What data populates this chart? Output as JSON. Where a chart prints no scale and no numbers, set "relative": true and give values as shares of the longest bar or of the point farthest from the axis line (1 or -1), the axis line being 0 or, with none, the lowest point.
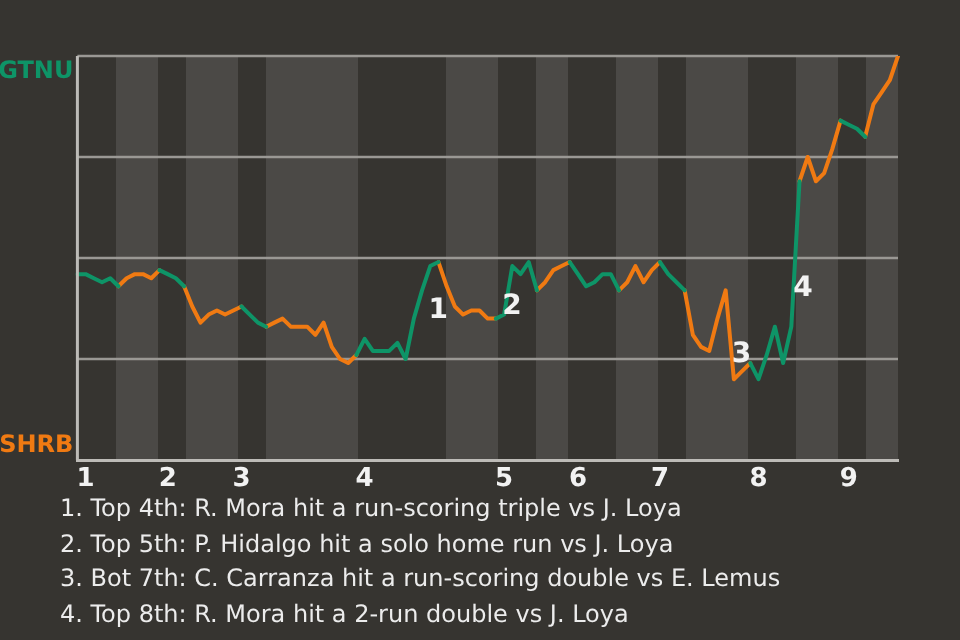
{
  "chart_data": {
    "type": "line",
    "categories": [
      null,
      "1",
      null,
      null,
      null,
      null,
      null,
      null,
      null,
      null,
      null,
      "2",
      null,
      null,
      null,
      null,
      null,
      null,
      null,
      null,
      "3",
      null,
      null,
      null,
      null,
      null,
      null,
      null,
      null,
      null,
      null,
      null,
      null,
      null,
      null,
      "4",
      null,
      null,
      null,
      null,
      null,
      null,
      null,
      null,
      null,
      null,
      null,
      null,
      null,
      null,
      null,
      null,
      "5",
      null,
      null,
      null,
      null,
      null,
      null,
      null,
      null,
      "6",
      null,
      null,
      null,
      null,
      null,
      null,
      null,
      null,
      null,
      "7",
      null,
      null,
      null,
      null,
      null,
      null,
      null,
      null,
      null,
      null,
      null,
      "8",
      null,
      null,
      null,
      null,
      null,
      null,
      null,
      null,
      null,
      null,
      "9",
      null,
      null,
      null,
      null,
      null,
      null
    ],
    "relative": true,
    "series": [
      {
        "name": "GTNU",
        "color": "#0e9467",
        "values": [
          0.46,
          0.46,
          0.45,
          0.44,
          0.45,
          0.43,
          null,
          null,
          null,
          null,
          0.47,
          0.46,
          0.45,
          0.43,
          null,
          null,
          null,
          null,
          null,
          null,
          0.38,
          0.36,
          0.34,
          0.33,
          null,
          null,
          null,
          null,
          null,
          null,
          null,
          null,
          null,
          null,
          0.26,
          0.3,
          0.27,
          0.27,
          0.27,
          0.29,
          0.25,
          0.35,
          0.42,
          0.48,
          0.49,
          null,
          null,
          null,
          null,
          null,
          null,
          0.35,
          0.36,
          0.48,
          0.46,
          0.49,
          0.42,
          null,
          null,
          null,
          0.49,
          0.46,
          0.43,
          0.44,
          0.46,
          0.46,
          0.42,
          null,
          null,
          null,
          null,
          0.49,
          0.46,
          0.44,
          0.42,
          null,
          null,
          null,
          null,
          null,
          null,
          null,
          0.24,
          0.2,
          0.26,
          0.33,
          0.24,
          0.33,
          0.69,
          null,
          null,
          null,
          null,
          0.84,
          0.83,
          0.82,
          0.8,
          null,
          null,
          null,
          null
        ]
      },
      {
        "name": "SHRB",
        "color": "#f07a12",
        "values": [
          null,
          null,
          null,
          null,
          null,
          0.43,
          0.45,
          0.46,
          0.46,
          0.45,
          0.47,
          null,
          null,
          0.43,
          0.38,
          0.34,
          0.36,
          0.37,
          0.36,
          0.37,
          0.38,
          null,
          null,
          0.33,
          0.34,
          0.35,
          0.33,
          0.33,
          0.33,
          0.31,
          0.34,
          0.28,
          0.25,
          0.24,
          0.26,
          null,
          null,
          null,
          null,
          null,
          null,
          null,
          null,
          null,
          0.49,
          0.43,
          0.38,
          0.36,
          0.37,
          0.37,
          0.35,
          0.35,
          null,
          null,
          null,
          null,
          0.42,
          0.44,
          0.47,
          0.48,
          0.49,
          null,
          null,
          null,
          null,
          null,
          0.42,
          0.44,
          0.48,
          0.44,
          0.47,
          0.49,
          null,
          null,
          0.42,
          0.31,
          0.28,
          0.27,
          0.35,
          0.42,
          0.2,
          0.22,
          0.24,
          null,
          null,
          null,
          null,
          null,
          0.69,
          0.75,
          0.69,
          0.71,
          0.77,
          0.84,
          null,
          null,
          0.8,
          0.88,
          0.91,
          0.94,
          1.0
        ]
      }
    ],
    "grid": "y",
    "legend": "left",
    "marker": "none",
    "annotations": [
      "1",
      "2",
      "3",
      "4",
      "1. Top 4th: R. Mora hit a run-scoring triple vs J. Loya",
      "2. Top 5th: P. Hidalgo hit a solo home run vs J. Loya",
      "3. Bot 7th: C. Carranza hit a run-scoring double vs E. Lemus",
      "4. Top 8th: R. Mora hit a 2-run double vs J. Loya"
    ]
  }
}
